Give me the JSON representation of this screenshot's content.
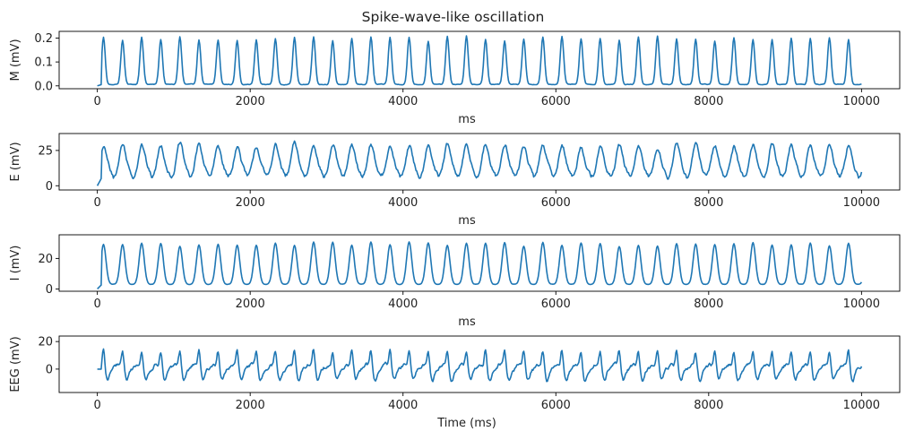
{
  "figure": {
    "title": "Spike-wave-like oscillation",
    "line_color": "#1f77b4",
    "period_ms": 250
  },
  "chart_data": [
    {
      "type": "line",
      "id": "M",
      "series": [
        {
          "name": "",
          "color": "#1f77b4"
        }
      ],
      "xlabel": "ms",
      "ylabel": "M (mV)",
      "xlim": [
        -500,
        10500
      ],
      "ylim": [
        -0.012,
        0.228
      ],
      "xticks": [
        0,
        2000,
        4000,
        6000,
        8000,
        10000
      ],
      "xtick_labels": [
        "0",
        "2000",
        "4000",
        "6000",
        "8000",
        "10000"
      ],
      "yticks": [
        0.0,
        0.1,
        0.2
      ],
      "ytick_labels": [
        "0.0",
        "0.1",
        "0.2"
      ],
      "peak": 0.21,
      "baseline": 0.006,
      "noise": 0.002,
      "peak_width_ms": 45,
      "shape": "spike",
      "grid": false
    },
    {
      "type": "line",
      "id": "E",
      "series": [
        {
          "name": "",
          "color": "#1f77b4"
        }
      ],
      "xlabel": "ms",
      "ylabel": "E (mV)",
      "xlim": [
        -500,
        10500
      ],
      "ylim": [
        -3,
        37
      ],
      "xticks": [
        0,
        2000,
        4000,
        6000,
        8000,
        10000
      ],
      "xtick_labels": [
        "0",
        "2000",
        "4000",
        "6000",
        "8000",
        "10000"
      ],
      "yticks": [
        0,
        25
      ],
      "ytick_labels": [
        "0",
        "25"
      ],
      "peak": 30,
      "baseline": 6,
      "noise": 2.2,
      "peak_width_ms": 60,
      "shape": "broad",
      "grid": false
    },
    {
      "type": "line",
      "id": "I",
      "series": [
        {
          "name": "",
          "color": "#1f77b4"
        }
      ],
      "xlabel": "ms",
      "ylabel": "I (mV)",
      "xlim": [
        -500,
        10500
      ],
      "ylim": [
        -1.5,
        35.5
      ],
      "xticks": [
        0,
        2000,
        4000,
        6000,
        8000,
        10000
      ],
      "xtick_labels": [
        "0",
        "2000",
        "4000",
        "6000",
        "8000",
        "10000"
      ],
      "yticks": [
        0,
        20
      ],
      "ytick_labels": [
        "0",
        "20"
      ],
      "peak": 31,
      "baseline": 3,
      "noise": 0.15,
      "peak_width_ms": 55,
      "shape": "smooth",
      "grid": false
    },
    {
      "type": "line",
      "id": "EEG",
      "series": [
        {
          "name": "",
          "color": "#1f77b4"
        }
      ],
      "xlabel": "Time (ms)",
      "ylabel": "EEG (mV)",
      "xlim": [
        -500,
        10500
      ],
      "ylim": [
        -17,
        24
      ],
      "xticks": [
        0,
        2000,
        4000,
        6000,
        8000,
        10000
      ],
      "xtick_labels": [
        "0",
        "2000",
        "4000",
        "6000",
        "8000",
        "10000"
      ],
      "yticks": [
        0,
        20
      ],
      "ytick_labels": [
        "0",
        "20"
      ],
      "peak": 14,
      "baseline": 0,
      "noise": 1.8,
      "peak_width_ms": 40,
      "shape": "spike-wave",
      "grid": false
    }
  ]
}
